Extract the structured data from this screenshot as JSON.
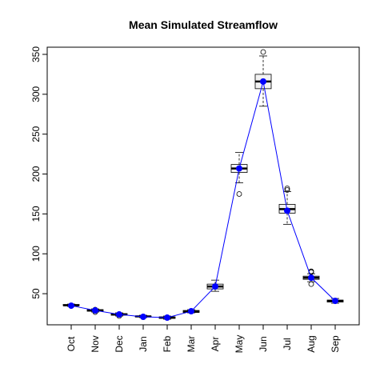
{
  "chart_data": {
    "type": "boxplot",
    "title": "Mean Simulated Streamflow",
    "xlabel": "",
    "ylabel": "",
    "categories": [
      "Oct",
      "Nov",
      "Dec",
      "Jan",
      "Feb",
      "Mar",
      "Apr",
      "May",
      "Jun",
      "Jul",
      "Aug",
      "Sep"
    ],
    "ylim": [
      11,
      359
    ],
    "yticks": [
      50,
      100,
      150,
      200,
      250,
      300,
      350
    ],
    "grid": false,
    "boxes": [
      {
        "min": 34,
        "q1": 35,
        "median": 35.5,
        "q3": 36.5,
        "max": 37,
        "outliers": []
      },
      {
        "min": 27,
        "q1": 28,
        "median": 29,
        "q3": 30,
        "max": 31,
        "outliers": [
          27,
          30
        ]
      },
      {
        "min": 22,
        "q1": 23,
        "median": 24,
        "q3": 25,
        "max": 26,
        "outliers": [
          22
        ]
      },
      {
        "min": 20,
        "q1": 21,
        "median": 21.5,
        "q3": 22,
        "max": 23,
        "outliers": []
      },
      {
        "min": 18,
        "q1": 19,
        "median": 20,
        "q3": 21,
        "max": 22,
        "outliers": []
      },
      {
        "min": 26,
        "q1": 26.5,
        "median": 27.5,
        "q3": 29,
        "max": 30,
        "outliers": [
          28
        ]
      },
      {
        "min": 53,
        "q1": 56,
        "median": 59,
        "q3": 62,
        "max": 67,
        "outliers": []
      },
      {
        "min": 189,
        "q1": 202,
        "median": 207,
        "q3": 212,
        "max": 227,
        "outliers": [
          175
        ]
      },
      {
        "min": 285,
        "q1": 307,
        "median": 316,
        "q3": 325,
        "max": 348,
        "outliers": [
          353
        ]
      },
      {
        "min": 137,
        "q1": 151,
        "median": 156,
        "q3": 162,
        "max": 178,
        "outliers": [
          180,
          182
        ]
      },
      {
        "min": 65,
        "q1": 68,
        "median": 70,
        "q3": 72,
        "max": 75,
        "outliers": [
          62,
          77,
          78
        ]
      },
      {
        "min": 38,
        "q1": 39.5,
        "median": 41,
        "q3": 42,
        "max": 44,
        "outliers": []
      }
    ],
    "series": [
      {
        "values": [
          35,
          29,
          24,
          21,
          20,
          28,
          59,
          207,
          316,
          154,
          70,
          41
        ],
        "color": "#0000ff"
      }
    ]
  }
}
